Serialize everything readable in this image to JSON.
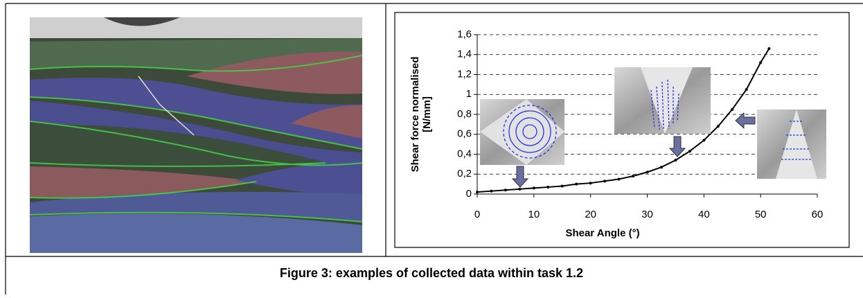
{
  "caption": "Figure 3: examples of collected data within task 1.2",
  "chart_data": {
    "type": "line",
    "x_label": "Shear Angle (°)",
    "y_label_lines": [
      "Shear force normalised",
      "[N/mm]"
    ],
    "x": [
      0,
      2.5,
      5,
      7.5,
      10,
      12.5,
      15,
      17.5,
      20,
      22.5,
      25,
      27.5,
      30,
      32.5,
      35,
      37.5,
      40,
      42.5,
      45,
      47.5,
      50,
      51.5
    ],
    "series": [
      {
        "color": "#000000",
        "values": [
          0.02,
          0.03,
          0.04,
          0.05,
          0.06,
          0.07,
          0.08,
          0.1,
          0.11,
          0.13,
          0.15,
          0.18,
          0.22,
          0.27,
          0.34,
          0.43,
          0.54,
          0.68,
          0.85,
          1.05,
          1.32,
          1.46
        ]
      }
    ],
    "xlim": [
      0,
      60
    ],
    "xticks": [
      0,
      10,
      20,
      30,
      40,
      50,
      60
    ],
    "ylim": [
      0,
      1.6
    ],
    "yticks": [
      0,
      {
        "value": 0.2,
        "label": "0,2"
      },
      {
        "value": 0.4,
        "label": "0,4"
      },
      {
        "value": 0.6,
        "label": "0,6"
      },
      {
        "value": 0.8,
        "label": "0,8"
      },
      1,
      {
        "value": 1.2,
        "label": "1,2"
      },
      {
        "value": 1.4,
        "label": "1,4"
      },
      {
        "value": 1.6,
        "label": "1,6"
      }
    ],
    "grid": true
  }
}
